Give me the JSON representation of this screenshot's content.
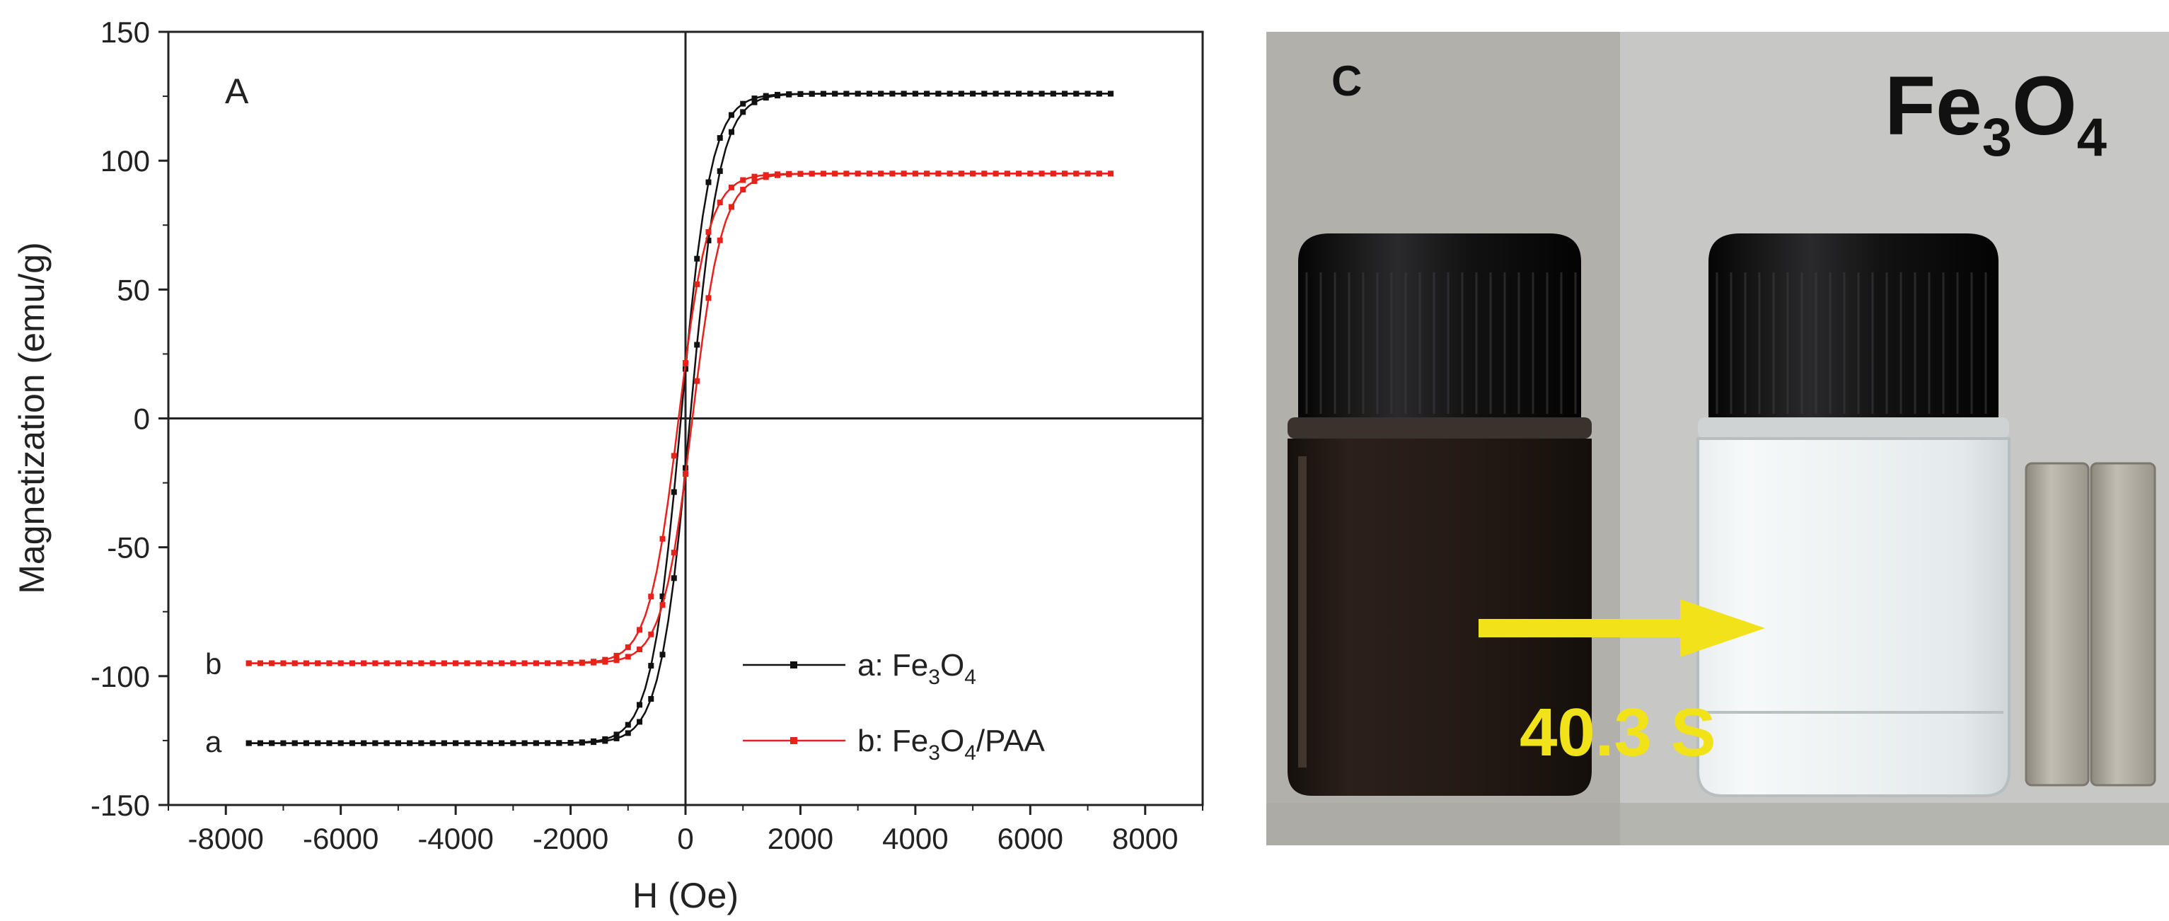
{
  "chart_data": {
    "type": "line",
    "panel_label": "A",
    "xlabel": "H (Oe)",
    "ylabel": "Magnetization (emu/g)",
    "xlim": [
      -9000,
      9000
    ],
    "ylim": [
      -150,
      150
    ],
    "x_ticks": [
      -8000,
      -6000,
      -4000,
      -2000,
      0,
      2000,
      4000,
      6000,
      8000
    ],
    "y_ticks": [
      -150,
      -100,
      -50,
      0,
      50,
      100,
      150
    ],
    "legend_position": "bottom-right",
    "series": [
      {
        "id": "a",
        "name_prefix": "a: Fe",
        "sub1": "3",
        "mid": "O",
        "sub2": "4",
        "suffix": "",
        "color": "#111111",
        "curve_label": "a",
        "Ms": 126,
        "Hc": 80,
        "x_range": [
          -7600,
          7400
        ]
      },
      {
        "id": "b",
        "name_prefix": "b: Fe",
        "sub1": "3",
        "mid": "O",
        "sub2": "4",
        "suffix": "/PAA",
        "color": "#e8211b",
        "curve_label": "b",
        "Ms": 95,
        "Hc": 120,
        "x_range": [
          -7600,
          7400
        ]
      }
    ]
  },
  "photo": {
    "panel_label": "C",
    "title_main": "Fe",
    "title_sub1": "3",
    "title_mid": "O",
    "title_sub2": "4",
    "time_label": "40.3 S",
    "colors": {
      "background_left": "#b1b0ab",
      "background_right": "#c7c7c5",
      "cap": "#0e0e0f",
      "dark_liquid": "#241a14",
      "clear_liquid": "#dfe6e8",
      "magnet": "#aaa49a",
      "arrow": "#f2e21a"
    }
  }
}
